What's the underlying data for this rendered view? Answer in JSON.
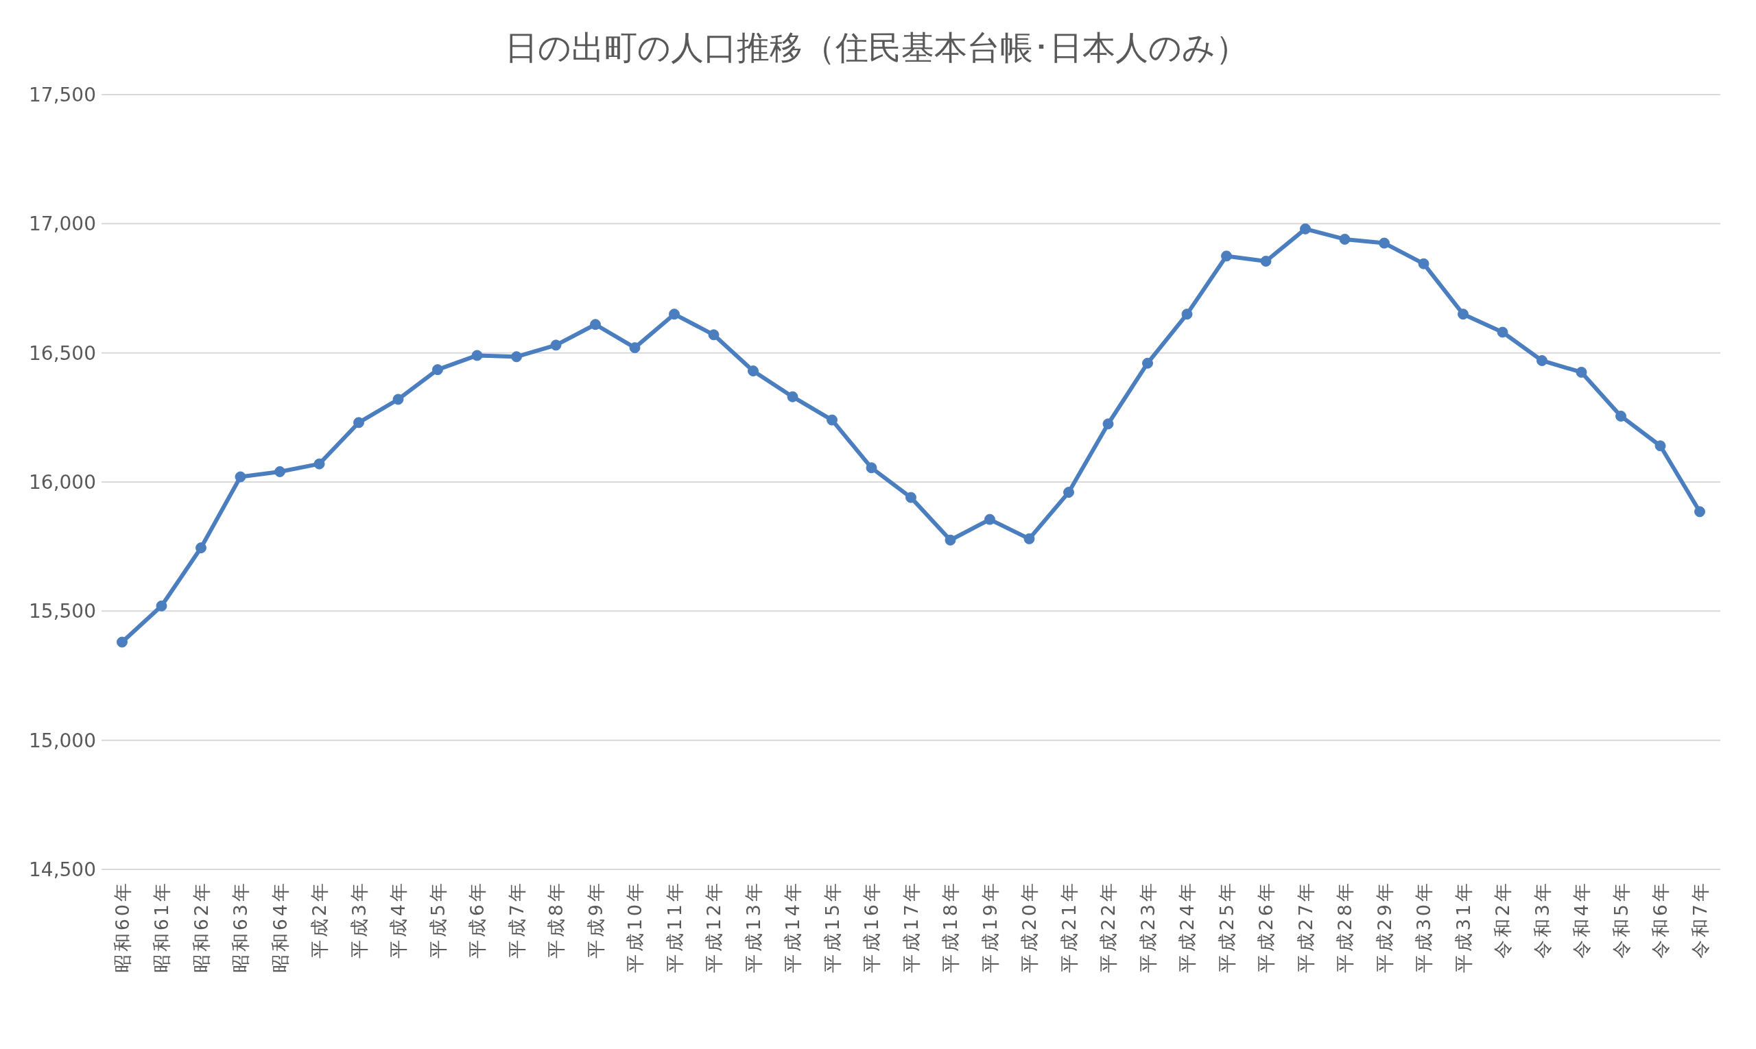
{
  "chart_data": {
    "type": "line",
    "title": "日の出町の人口推移（住民基本台帳･日本人のみ）",
    "categories": [
      "昭和60年",
      "昭和61年",
      "昭和62年",
      "昭和63年",
      "昭和64年",
      "平成2年",
      "平成3年",
      "平成4年",
      "平成5年",
      "平成6年",
      "平成7年",
      "平成8年",
      "平成9年",
      "平成10年",
      "平成11年",
      "平成12年",
      "平成13年",
      "平成14年",
      "平成15年",
      "平成16年",
      "平成17年",
      "平成18年",
      "平成19年",
      "平成20年",
      "平成21年",
      "平成22年",
      "平成23年",
      "平成24年",
      "平成25年",
      "平成26年",
      "平成27年",
      "平成28年",
      "平成29年",
      "平成30年",
      "平成31年",
      "令和2年",
      "令和3年",
      "令和4年",
      "令和5年",
      "令和6年",
      "令和7年"
    ],
    "series": [
      {
        "color": "#4a7ebf",
        "values": [
          15380,
          15520,
          15745,
          16020,
          16040,
          16070,
          16230,
          16320,
          16435,
          16490,
          16485,
          16530,
          16610,
          16520,
          16650,
          16570,
          16430,
          16330,
          16240,
          16055,
          15940,
          15775,
          15855,
          15780,
          15960,
          16225,
          16460,
          16650,
          16875,
          16855,
          16980,
          16940,
          16925,
          16845,
          16650,
          16580,
          16470,
          16425,
          16255,
          16140,
          15885
        ]
      }
    ],
    "ylim": [
      14500,
      17500
    ],
    "yticks": [
      {
        "value": 14500,
        "label": "14,500"
      },
      {
        "value": 15000,
        "label": "15,000"
      },
      {
        "value": 15500,
        "label": "15,500"
      },
      {
        "value": 16000,
        "label": "16,000"
      },
      {
        "value": 16500,
        "label": "16,500"
      },
      {
        "value": 17000,
        "label": "17,000"
      },
      {
        "value": 17500,
        "label": "17,500"
      }
    ],
    "grid": "y",
    "marker": "circle",
    "line_style": "solid",
    "legend": false
  }
}
